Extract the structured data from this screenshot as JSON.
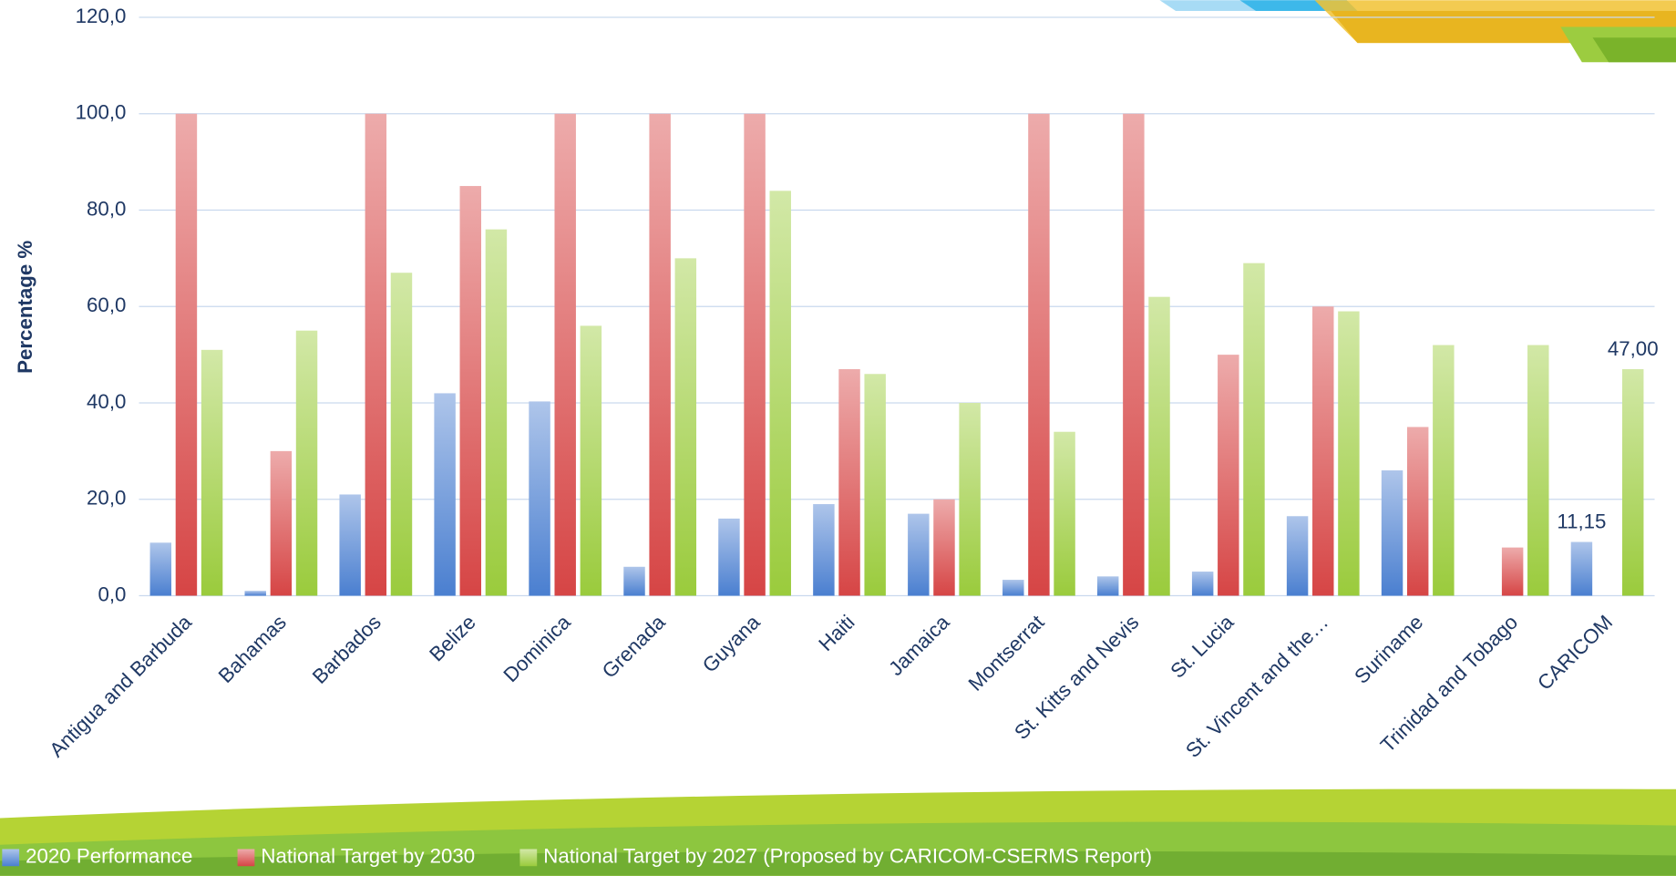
{
  "chart_data": {
    "type": "bar",
    "y_label": "Percentage %",
    "categories": [
      "Antigua and Barbuda",
      "Bahamas",
      "Barbados",
      "Belize",
      "Dominica",
      "Grenada",
      "Guyana",
      "Haiti",
      "Jamaica",
      "Montserrat",
      "St. Kitts and Nevis",
      "St. Lucia",
      "St. Vincent and the…",
      "Suriname",
      "Trinidad and Tobago",
      "CARICOM"
    ],
    "series": [
      {
        "name": "2020 Performance",
        "color": "#4a7fd0",
        "values": [
          11,
          1,
          21,
          42,
          40.3,
          6,
          16,
          19,
          17,
          3.3,
          4,
          5,
          16.5,
          26,
          null,
          11.15
        ],
        "value_labels": [
          null,
          null,
          null,
          null,
          null,
          null,
          null,
          null,
          null,
          null,
          null,
          null,
          null,
          null,
          null,
          "11,15"
        ]
      },
      {
        "name": "National Target by 2030",
        "color": "#d64545",
        "values": [
          100,
          30,
          100,
          85,
          100,
          100,
          100,
          47,
          20,
          100,
          100,
          50,
          60,
          35,
          10,
          null
        ]
      },
      {
        "name": "National Target by 2027 (Proposed by CARICOM-CSERMS Report)",
        "color": "#9acb3c",
        "values": [
          51,
          55,
          67,
          76,
          56,
          70,
          84,
          46,
          40,
          34,
          62,
          69,
          59,
          52,
          52,
          47
        ],
        "value_labels": [
          null,
          null,
          null,
          null,
          null,
          null,
          null,
          null,
          null,
          null,
          null,
          null,
          null,
          null,
          null,
          "47,00"
        ]
      }
    ],
    "ylim": [
      0,
      120
    ],
    "yticks": [
      {
        "value": 0,
        "label": "0,0"
      },
      {
        "value": 20,
        "label": "20,0"
      },
      {
        "value": 40,
        "label": "40,0"
      },
      {
        "value": 60,
        "label": "60,0"
      },
      {
        "value": 80,
        "label": "80,0"
      },
      {
        "value": 100,
        "label": "100,0"
      },
      {
        "value": 120,
        "label": "120,0"
      }
    ],
    "grid": true,
    "legend": "bottom"
  }
}
